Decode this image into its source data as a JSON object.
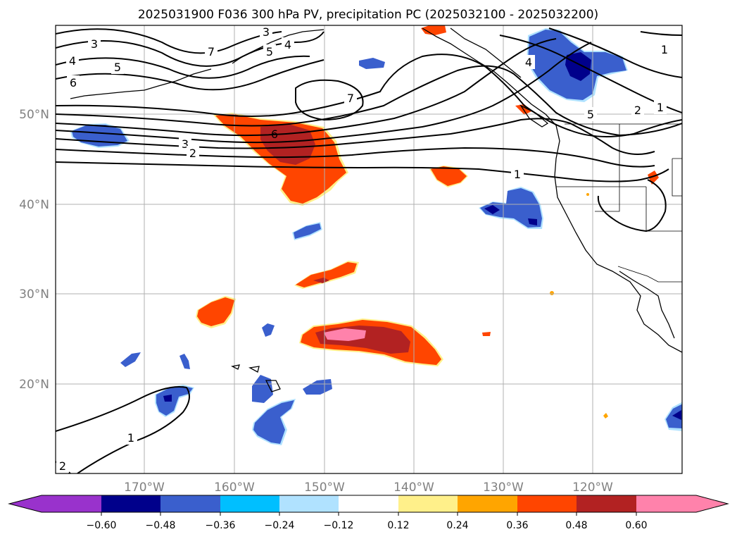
{
  "title": "2025031900 F036 300 hPa PV, precipitation PC (2025032100 - 2025032200)",
  "map": {
    "lon_ticks": [
      "170°W",
      "160°W",
      "150°W",
      "140°W",
      "130°W",
      "120°W"
    ],
    "lat_ticks": [
      "50°N",
      "40°N",
      "30°N",
      "20°N"
    ],
    "grid": true,
    "region": "North-East Pacific Ocean / western North America"
  },
  "contour_labels": [
    {
      "text": "3",
      "id": "c3a"
    },
    {
      "text": "4",
      "id": "c4a"
    },
    {
      "text": "5",
      "id": "c5a"
    },
    {
      "text": "6",
      "id": "c6a"
    },
    {
      "text": "7",
      "id": "c7a"
    },
    {
      "text": "5",
      "id": "c5b"
    },
    {
      "text": "4",
      "id": "c4b"
    },
    {
      "text": "3",
      "id": "c3b"
    },
    {
      "text": "7",
      "id": "c7b"
    },
    {
      "text": "6",
      "id": "c6b"
    },
    {
      "text": "3",
      "id": "c3c"
    },
    {
      "text": "2",
      "id": "c2a"
    },
    {
      "text": "1",
      "id": "c1a"
    },
    {
      "text": "4",
      "id": "c4c"
    },
    {
      "text": "5",
      "id": "c5c"
    },
    {
      "text": "2",
      "id": "c2b"
    },
    {
      "text": "1",
      "id": "c1b"
    },
    {
      "text": "1",
      "id": "c1c"
    },
    {
      "text": "1",
      "id": "c1d"
    },
    {
      "text": "2",
      "id": "c2c"
    }
  ],
  "colorbar": {
    "ticks": [
      "−0.60",
      "−0.48",
      "−0.36",
      "−0.24",
      "−0.12",
      "0.12",
      "0.24",
      "0.36",
      "0.48",
      "0.60"
    ],
    "colors": [
      "#9932cc",
      "#00008b",
      "#3a5fcd",
      "#00bfff",
      "#b0e2ff",
      "#ffffff",
      "#fff08a",
      "#ffa500",
      "#ff4500",
      "#b22222",
      "#ff82ab",
      "#ff82ab"
    ],
    "extend": "both"
  },
  "colors": {
    "neg_strong": "#00008b",
    "neg_mid": "#3a5fcd",
    "neg_light": "#00bfff",
    "neg_faint": "#b0e2ff",
    "pos_faint": "#fff08a",
    "pos_light": "#ffa500",
    "pos_mid": "#ff4500",
    "pos_strong": "#b22222",
    "pos_max": "#ff82ab"
  }
}
